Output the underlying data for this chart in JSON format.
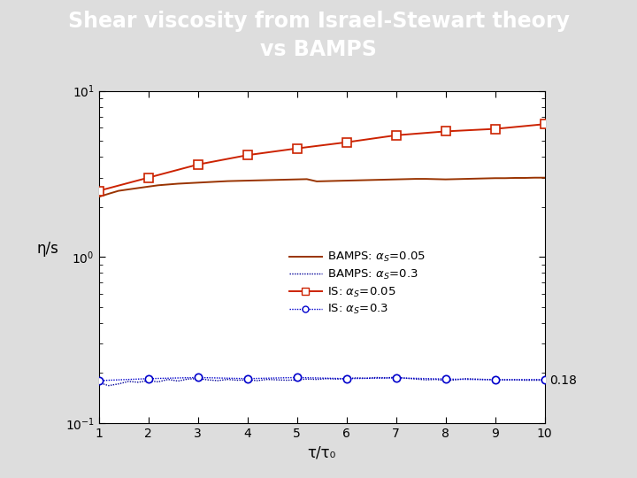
{
  "title_line1": "Shear viscosity from Israel-Stewart theory",
  "title_line2": "vs BAMPS",
  "title_bg_color": "#6677bb",
  "title_text_color": "#ffffff",
  "xlabel": "τ/τ₀",
  "ylabel": "η/s",
  "xlim": [
    1,
    10
  ],
  "x_ticks": [
    1,
    2,
    3,
    4,
    5,
    6,
    7,
    8,
    9,
    10
  ],
  "annotation_018": "0.18",
  "bamps_05_color": "#993300",
  "bamps_03_color": "#000099",
  "is_05_color": "#cc2200",
  "is_03_color": "#0000cc",
  "fig_bg_color": "#dddddd",
  "bamps_alpha05_x": [
    1.0,
    1.2,
    1.4,
    1.6,
    1.8,
    2.0,
    2.2,
    2.4,
    2.6,
    2.8,
    3.0,
    3.2,
    3.4,
    3.6,
    3.8,
    4.0,
    4.2,
    4.4,
    4.6,
    4.8,
    5.0,
    5.2,
    5.4,
    5.6,
    5.8,
    6.0,
    6.2,
    6.4,
    6.6,
    6.8,
    7.0,
    7.2,
    7.4,
    7.6,
    7.8,
    8.0,
    8.2,
    8.4,
    8.6,
    8.8,
    9.0,
    9.2,
    9.4,
    9.6,
    9.8,
    10.0
  ],
  "bamps_alpha05_y": [
    2.3,
    2.4,
    2.5,
    2.55,
    2.6,
    2.65,
    2.7,
    2.73,
    2.76,
    2.78,
    2.8,
    2.82,
    2.84,
    2.86,
    2.87,
    2.88,
    2.89,
    2.9,
    2.91,
    2.92,
    2.93,
    2.94,
    2.85,
    2.86,
    2.87,
    2.88,
    2.89,
    2.9,
    2.91,
    2.92,
    2.93,
    2.94,
    2.95,
    2.95,
    2.94,
    2.93,
    2.94,
    2.95,
    2.96,
    2.97,
    2.98,
    2.98,
    2.99,
    2.99,
    3.0,
    3.0
  ],
  "bamps_alpha03_x": [
    1.0,
    1.2,
    1.4,
    1.6,
    1.8,
    2.0,
    2.2,
    2.4,
    2.6,
    2.8,
    3.0,
    3.2,
    3.4,
    3.6,
    3.8,
    4.0,
    4.2,
    4.4,
    4.6,
    4.8,
    5.0,
    5.2,
    5.4,
    5.6,
    5.8,
    6.0,
    6.2,
    6.4,
    6.6,
    6.8,
    7.0,
    7.2,
    7.4,
    7.6,
    7.8,
    8.0,
    8.2,
    8.4,
    8.6,
    8.8,
    9.0,
    9.2,
    9.4,
    9.6,
    9.8,
    10.0
  ],
  "bamps_alpha03_y": [
    0.175,
    0.168,
    0.172,
    0.178,
    0.176,
    0.18,
    0.177,
    0.183,
    0.179,
    0.184,
    0.185,
    0.182,
    0.18,
    0.183,
    0.181,
    0.182,
    0.18,
    0.183,
    0.182,
    0.181,
    0.182,
    0.184,
    0.183,
    0.185,
    0.184,
    0.185,
    0.187,
    0.186,
    0.188,
    0.187,
    0.189,
    0.186,
    0.184,
    0.182,
    0.183,
    0.18,
    0.182,
    0.185,
    0.184,
    0.183,
    0.183,
    0.182,
    0.182,
    0.181,
    0.181,
    0.181
  ],
  "is_alpha05_x": [
    1,
    2,
    3,
    4,
    5,
    6,
    7,
    8,
    9,
    10
  ],
  "is_alpha05_y": [
    2.5,
    3.0,
    3.6,
    4.1,
    4.5,
    4.9,
    5.4,
    5.7,
    5.9,
    6.3
  ],
  "is_alpha03_x": [
    1,
    2,
    3,
    4,
    5,
    6,
    7,
    8,
    9,
    10
  ],
  "is_alpha03_y": [
    0.18,
    0.185,
    0.188,
    0.185,
    0.188,
    0.185,
    0.187,
    0.184,
    0.182,
    0.183
  ]
}
